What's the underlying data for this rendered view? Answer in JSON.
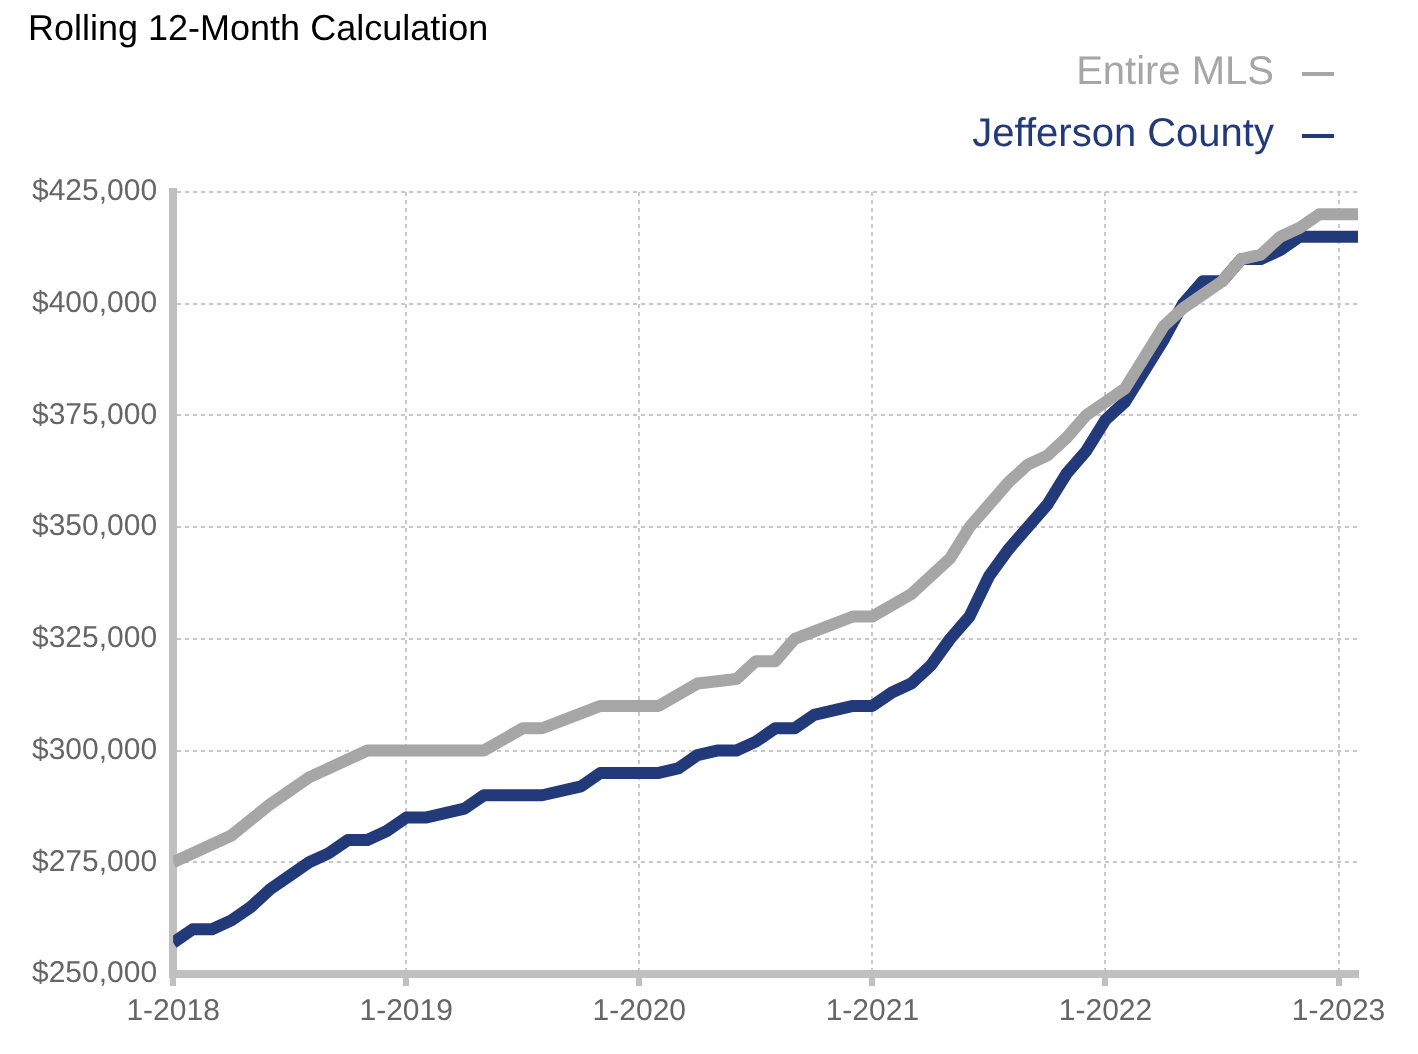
{
  "chart_data": {
    "type": "line",
    "title": "Rolling 12-Month Calculation",
    "legend": "top right",
    "grid": true,
    "marker": "none",
    "line_style": "solid",
    "xlim": [
      "2018-01",
      "2023-02"
    ],
    "xticks": [
      {
        "value": "2018-01",
        "label": "1-2018"
      },
      {
        "value": "2019-01",
        "label": "1-2019"
      },
      {
        "value": "2020-01",
        "label": "1-2020"
      },
      {
        "value": "2021-01",
        "label": "1-2021"
      },
      {
        "value": "2022-01",
        "label": "1-2022"
      },
      {
        "value": "2023-01",
        "label": "1-2023"
      }
    ],
    "ylim": [
      250000,
      425000
    ],
    "yticks": [
      {
        "value": 250000,
        "label": "$250,000"
      },
      {
        "value": 275000,
        "label": "$275,000"
      },
      {
        "value": 300000,
        "label": "$300,000"
      },
      {
        "value": 325000,
        "label": "$325,000"
      },
      {
        "value": 350000,
        "label": "$350,000"
      },
      {
        "value": 375000,
        "label": "$375,000"
      },
      {
        "value": 400000,
        "label": "$400,000"
      },
      {
        "value": 425000,
        "label": "$425,000"
      }
    ],
    "series": [
      {
        "name": "Entire MLS",
        "color": "#a6a6a6",
        "x": [
          "2018-01",
          "2018-04",
          "2018-06",
          "2018-08",
          "2018-11",
          "2019-01",
          "2019-05",
          "2019-07",
          "2019-08",
          "2019-11",
          "2020-02",
          "2020-04",
          "2020-06",
          "2020-07",
          "2020-08",
          "2020-09",
          "2020-12",
          "2021-01",
          "2021-03",
          "2021-05",
          "2021-06",
          "2021-07",
          "2021-08",
          "2021-09",
          "2021-10",
          "2021-11",
          "2021-12",
          "2022-02",
          "2022-03",
          "2022-04",
          "2022-05",
          "2022-06",
          "2022-07",
          "2022-08",
          "2022-09",
          "2022-10",
          "2022-11",
          "2022-12",
          "2023-02"
        ],
        "values": [
          275000,
          281000,
          288000,
          294000,
          300000,
          300000,
          300000,
          305000,
          305000,
          310000,
          310000,
          315000,
          316000,
          320000,
          320000,
          325000,
          330000,
          330000,
          335000,
          343000,
          350000,
          355000,
          360000,
          364000,
          366000,
          370000,
          375000,
          381000,
          388000,
          395000,
          399000,
          402000,
          405000,
          410000,
          411000,
          415000,
          417000,
          420000,
          420000
        ]
      },
      {
        "name": "Jefferson County",
        "color": "#233a7a",
        "x": [
          "2018-01",
          "2018-02",
          "2018-03",
          "2018-04",
          "2018-05",
          "2018-06",
          "2018-07",
          "2018-08",
          "2018-09",
          "2018-10",
          "2018-11",
          "2018-12",
          "2019-01",
          "2019-02",
          "2019-04",
          "2019-05",
          "2019-08",
          "2019-10",
          "2019-11",
          "2020-02",
          "2020-03",
          "2020-04",
          "2020-05",
          "2020-06",
          "2020-07",
          "2020-08",
          "2020-09",
          "2020-10",
          "2020-12",
          "2021-01",
          "2021-02",
          "2021-03",
          "2021-04",
          "2021-05",
          "2021-06",
          "2021-07",
          "2021-08",
          "2021-09",
          "2021-10",
          "2021-11",
          "2021-12",
          "2022-01",
          "2022-02",
          "2022-03",
          "2022-04",
          "2022-05",
          "2022-06",
          "2022-07",
          "2022-08",
          "2022-09",
          "2022-10",
          "2022-11",
          "2023-02"
        ],
        "values": [
          257000,
          260000,
          260000,
          262000,
          265000,
          269000,
          272000,
          275000,
          277000,
          280000,
          280000,
          282000,
          285000,
          285000,
          287000,
          290000,
          290000,
          292000,
          295000,
          295000,
          296000,
          299000,
          300000,
          300000,
          302000,
          305000,
          305000,
          308000,
          310000,
          310000,
          313000,
          315000,
          319000,
          325000,
          330000,
          339000,
          345000,
          350000,
          355000,
          362000,
          367000,
          374000,
          378000,
          385000,
          392000,
          400000,
          405000,
          405000,
          410000,
          410000,
          412000,
          415000,
          415000
        ]
      }
    ]
  }
}
